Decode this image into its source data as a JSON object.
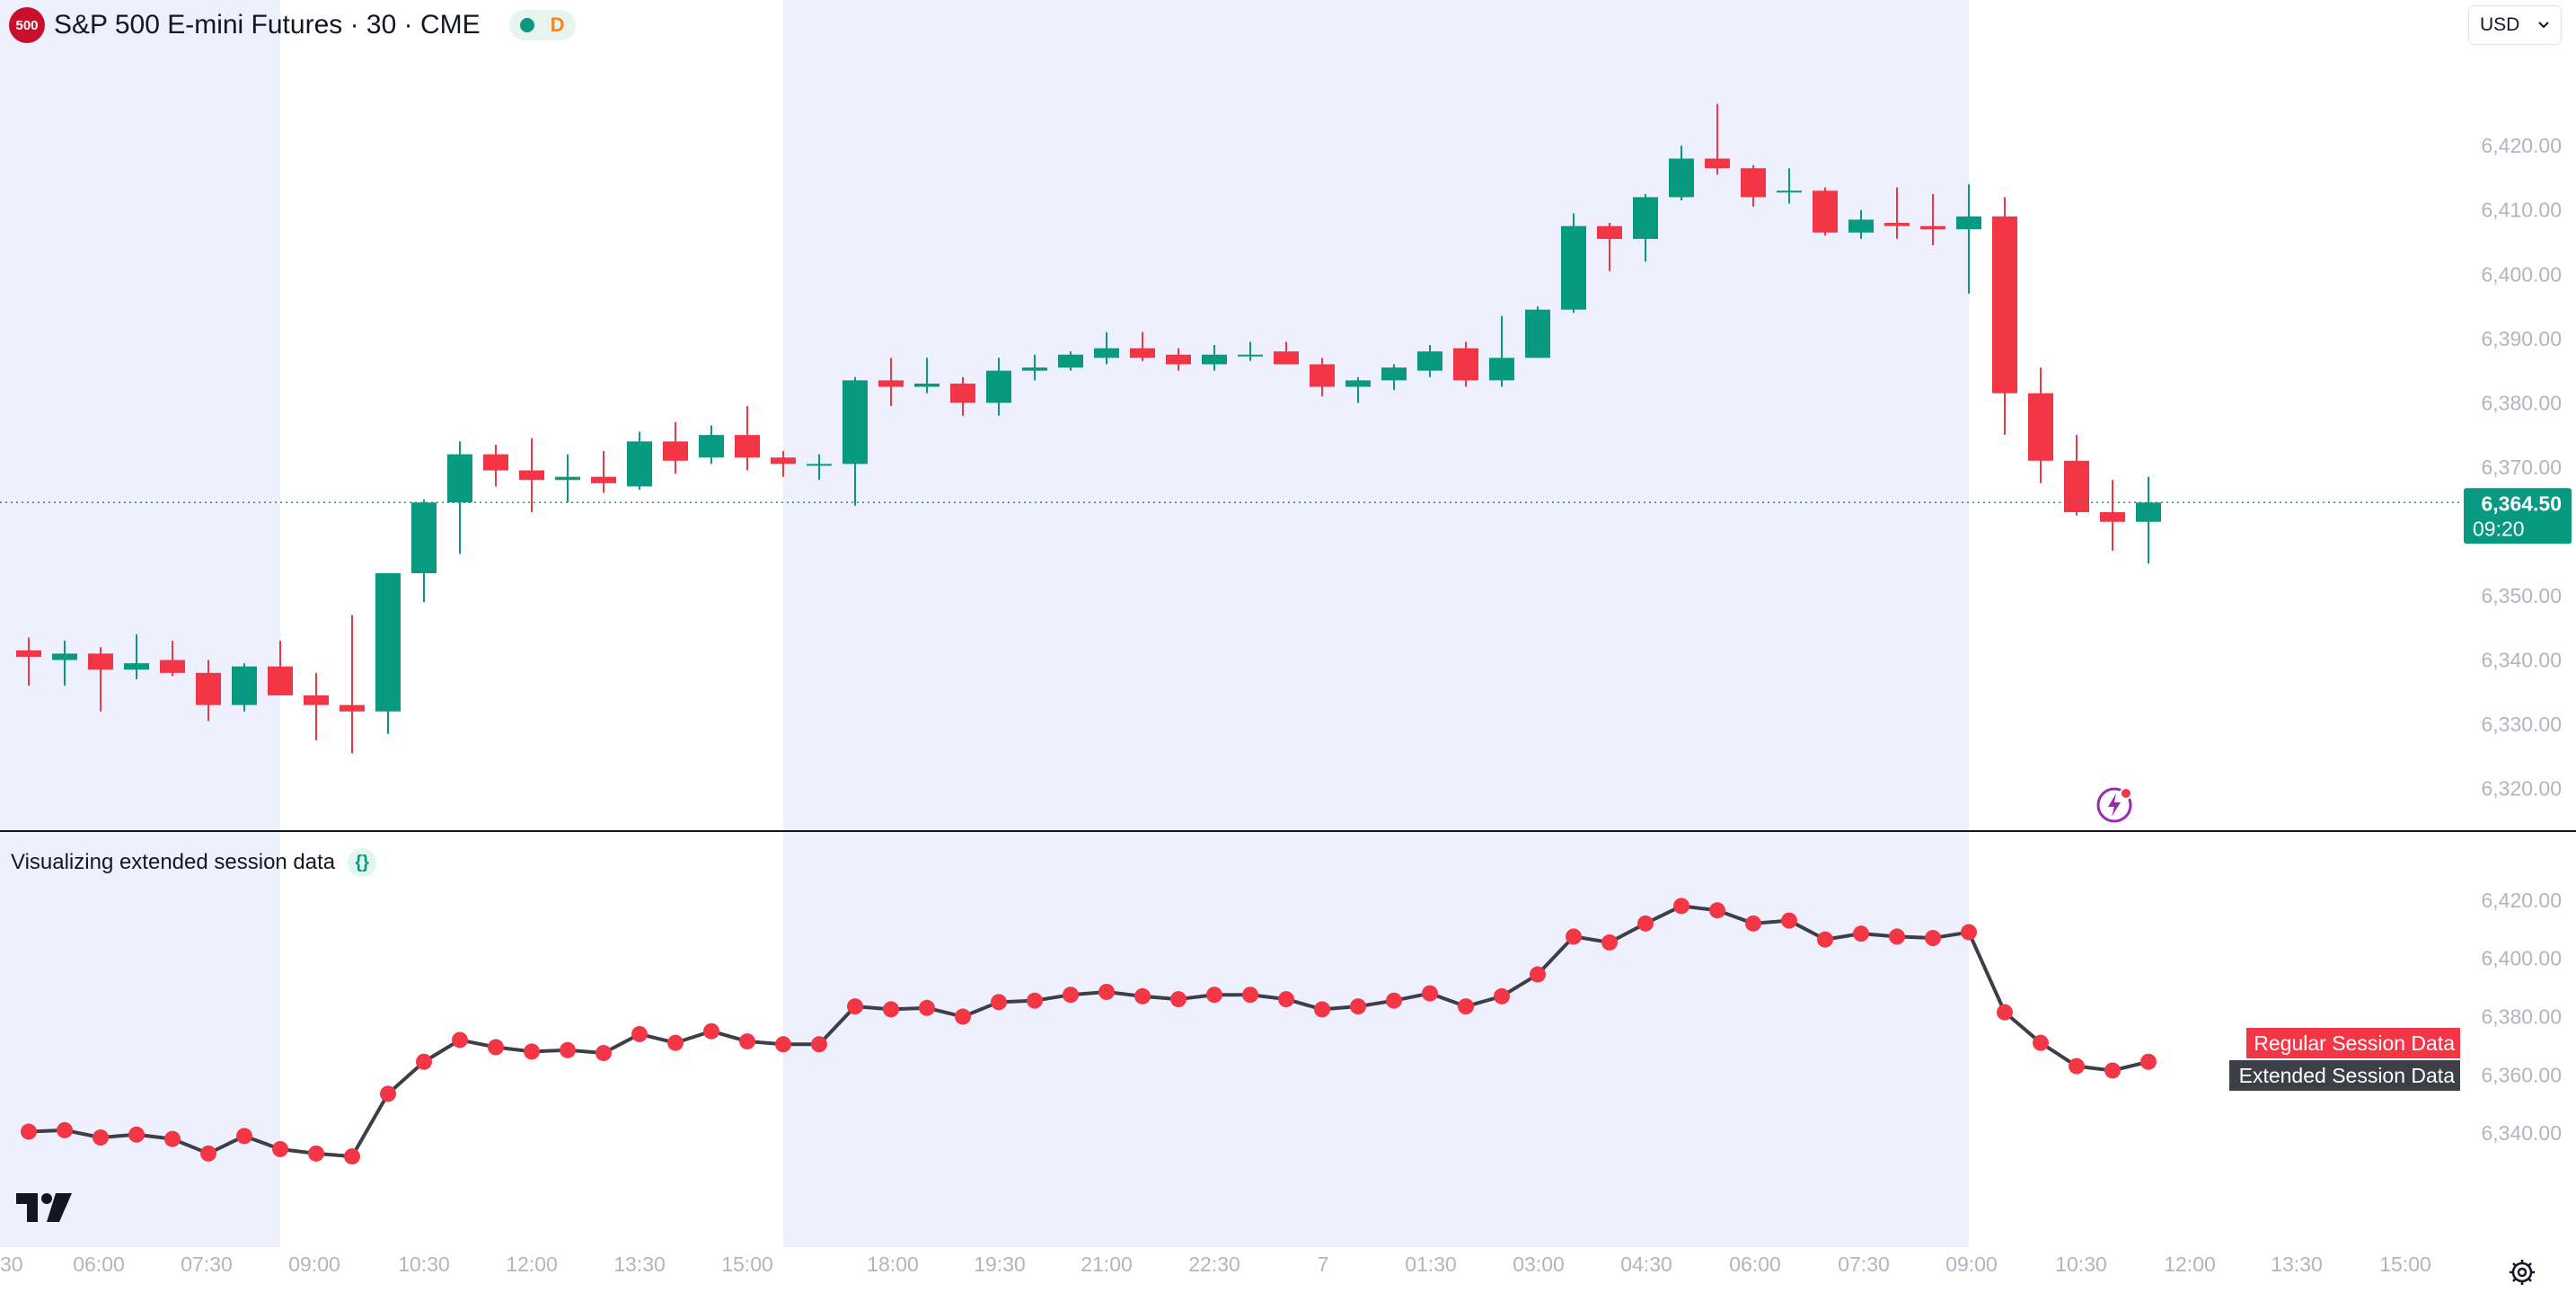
{
  "header": {
    "badge": "500",
    "title": "S&P 500 E-mini Futures · 30 · CME",
    "status_letter": "D",
    "currency": "USD"
  },
  "indicator": {
    "label": "Visualizing extended session data"
  },
  "colors": {
    "up": "#089981",
    "down": "#f23645",
    "line": "#3c3f47",
    "session_shade": "#eef1fd",
    "last_line": "#089981"
  },
  "icons": [
    "tradingview-logo-icon",
    "settings-gear-icon",
    "lightning-alert-icon",
    "chevron-down-icon",
    "curly-braces-icon"
  ],
  "chart_data": [
    {
      "type": "candlestick",
      "title": "S&P 500 E-mini Futures · 30 · CME",
      "y_ticks": [
        "6,320.00",
        "6,330.00",
        "6,340.00",
        "6,350.00",
        "6,360.00",
        "6,370.00",
        "6,380.00",
        "6,390.00",
        "6,400.00",
        "6,410.00",
        "6,420.00"
      ],
      "ylim": [
        6318,
        6434
      ],
      "last_price": "6,364.50",
      "countdown": "09:20",
      "candles": [
        {
          "o": 6341.5,
          "h": 6343.5,
          "l": 6336.0,
          "c": 6340.5
        },
        {
          "o": 6340.0,
          "h": 6343.0,
          "l": 6336.0,
          "c": 6341.0
        },
        {
          "o": 6341.0,
          "h": 6342.0,
          "l": 6332.0,
          "c": 6338.5
        },
        {
          "o": 6338.5,
          "h": 6344.0,
          "l": 6337.0,
          "c": 6339.5
        },
        {
          "o": 6340.0,
          "h": 6343.0,
          "l": 6337.5,
          "c": 6338.0
        },
        {
          "o": 6338.0,
          "h": 6340.0,
          "l": 6330.5,
          "c": 6333.0
        },
        {
          "o": 6333.0,
          "h": 6339.5,
          "l": 6332.0,
          "c": 6339.0
        },
        {
          "o": 6339.0,
          "h": 6343.0,
          "l": 6334.5,
          "c": 6334.5
        },
        {
          "o": 6334.5,
          "h": 6338.0,
          "l": 6327.5,
          "c": 6333.0
        },
        {
          "o": 6333.0,
          "h": 6347.0,
          "l": 6325.5,
          "c": 6332.0
        },
        {
          "o": 6332.0,
          "h": 6353.5,
          "l": 6328.5,
          "c": 6353.5
        },
        {
          "o": 6353.5,
          "h": 6365.0,
          "l": 6349.0,
          "c": 6364.5
        },
        {
          "o": 6364.5,
          "h": 6374.0,
          "l": 6356.5,
          "c": 6372.0
        },
        {
          "o": 6372.0,
          "h": 6373.5,
          "l": 6367.0,
          "c": 6369.5
        },
        {
          "o": 6369.5,
          "h": 6374.5,
          "l": 6363.0,
          "c": 6368.0
        },
        {
          "o": 6368.0,
          "h": 6372.0,
          "l": 6364.5,
          "c": 6368.5
        },
        {
          "o": 6368.5,
          "h": 6372.5,
          "l": 6366.0,
          "c": 6367.5
        },
        {
          "o": 6367.0,
          "h": 6375.5,
          "l": 6366.5,
          "c": 6374.0
        },
        {
          "o": 6374.0,
          "h": 6377.0,
          "l": 6369.0,
          "c": 6371.0
        },
        {
          "o": 6371.5,
          "h": 6376.5,
          "l": 6370.5,
          "c": 6375.0
        },
        {
          "o": 6375.0,
          "h": 6379.5,
          "l": 6369.5,
          "c": 6371.5
        },
        {
          "o": 6371.5,
          "h": 6372.5,
          "l": 6368.5,
          "c": 6370.5
        },
        {
          "o": 6370.5,
          "h": 6372.0,
          "l": 6368.0,
          "c": 6370.5
        },
        {
          "o": 6370.5,
          "h": 6384.0,
          "l": 6364.0,
          "c": 6383.5
        },
        {
          "o": 6383.5,
          "h": 6387.0,
          "l": 6379.5,
          "c": 6382.5
        },
        {
          "o": 6382.5,
          "h": 6387.0,
          "l": 6381.5,
          "c": 6383.0
        },
        {
          "o": 6383.0,
          "h": 6384.0,
          "l": 6378.0,
          "c": 6380.0
        },
        {
          "o": 6380.0,
          "h": 6387.0,
          "l": 6378.0,
          "c": 6385.0
        },
        {
          "o": 6385.0,
          "h": 6387.5,
          "l": 6383.5,
          "c": 6385.5
        },
        {
          "o": 6385.5,
          "h": 6388.0,
          "l": 6385.0,
          "c": 6387.5
        },
        {
          "o": 6387.0,
          "h": 6391.0,
          "l": 6386.0,
          "c": 6388.5
        },
        {
          "o": 6388.5,
          "h": 6391.0,
          "l": 6386.5,
          "c": 6387.0
        },
        {
          "o": 6387.5,
          "h": 6388.5,
          "l": 6385.0,
          "c": 6386.0
        },
        {
          "o": 6386.0,
          "h": 6389.0,
          "l": 6385.0,
          "c": 6387.5
        },
        {
          "o": 6387.5,
          "h": 6389.5,
          "l": 6386.5,
          "c": 6387.5
        },
        {
          "o": 6388.0,
          "h": 6389.5,
          "l": 6386.0,
          "c": 6386.0
        },
        {
          "o": 6386.0,
          "h": 6387.0,
          "l": 6381.0,
          "c": 6382.5
        },
        {
          "o": 6382.5,
          "h": 6384.0,
          "l": 6380.0,
          "c": 6383.5
        },
        {
          "o": 6383.5,
          "h": 6386.0,
          "l": 6382.0,
          "c": 6385.5
        },
        {
          "o": 6385.0,
          "h": 6389.0,
          "l": 6384.0,
          "c": 6388.0
        },
        {
          "o": 6388.5,
          "h": 6389.5,
          "l": 6382.5,
          "c": 6383.5
        },
        {
          "o": 6383.5,
          "h": 6393.5,
          "l": 6382.5,
          "c": 6387.0
        },
        {
          "o": 6387.0,
          "h": 6395.0,
          "l": 6387.0,
          "c": 6394.5
        },
        {
          "o": 6394.5,
          "h": 6409.5,
          "l": 6394.0,
          "c": 6407.5
        },
        {
          "o": 6407.5,
          "h": 6408.0,
          "l": 6400.5,
          "c": 6405.5
        },
        {
          "o": 6405.5,
          "h": 6412.5,
          "l": 6402.0,
          "c": 6412.0
        },
        {
          "o": 6412.0,
          "h": 6420.0,
          "l": 6411.5,
          "c": 6418.0
        },
        {
          "o": 6418.0,
          "h": 6426.5,
          "l": 6415.5,
          "c": 6416.5
        },
        {
          "o": 6416.5,
          "h": 6417.0,
          "l": 6410.5,
          "c": 6412.0
        },
        {
          "o": 6413.0,
          "h": 6416.5,
          "l": 6411.0,
          "c": 6413.0
        },
        {
          "o": 6413.0,
          "h": 6413.5,
          "l": 6406.0,
          "c": 6406.5
        },
        {
          "o": 6406.5,
          "h": 6410.0,
          "l": 6405.5,
          "c": 6408.5
        },
        {
          "o": 6408.0,
          "h": 6413.5,
          "l": 6405.5,
          "c": 6407.5
        },
        {
          "o": 6407.5,
          "h": 6412.5,
          "l": 6404.5,
          "c": 6407.0
        },
        {
          "o": 6407.0,
          "h": 6414.0,
          "l": 6397.0,
          "c": 6409.0
        },
        {
          "o": 6409.0,
          "h": 6412.0,
          "l": 6375.0,
          "c": 6381.5
        },
        {
          "o": 6381.5,
          "h": 6385.5,
          "l": 6367.5,
          "c": 6371.0
        },
        {
          "o": 6371.0,
          "h": 6375.0,
          "l": 6362.5,
          "c": 6363.0
        },
        {
          "o": 6363.0,
          "h": 6368.0,
          "l": 6357.0,
          "c": 6361.5
        },
        {
          "o": 6361.5,
          "h": 6368.5,
          "l": 6355.0,
          "c": 6364.5
        }
      ]
    },
    {
      "type": "line",
      "title": "Visualizing extended session data",
      "y_ticks": [
        "6,340.00",
        "6,360.00",
        "6,380.00",
        "6,400.00",
        "6,420.00"
      ],
      "ylim": [
        6324,
        6432
      ],
      "legend": [
        "Regular Session Data",
        "Extended Session Data"
      ],
      "x_ticks": [
        "30",
        "06:00",
        "07:30",
        "09:00",
        "10:30",
        "12:00",
        "13:30",
        "15:00",
        "18:00",
        "19:30",
        "21:00",
        "22:30",
        "7",
        "01:30",
        "03:00",
        "04:30",
        "06:00",
        "07:30",
        "09:00",
        "10:30",
        "12:00",
        "13:30",
        "15:00"
      ],
      "values": [
        6340.5,
        6341.0,
        6338.5,
        6339.5,
        6338.0,
        6333.0,
        6339.0,
        6334.5,
        6333.0,
        6332.0,
        6353.5,
        6364.5,
        6372.0,
        6369.5,
        6368.0,
        6368.5,
        6367.5,
        6374.0,
        6371.0,
        6375.0,
        6371.5,
        6370.5,
        6370.5,
        6383.5,
        6382.5,
        6383.0,
        6380.0,
        6385.0,
        6385.5,
        6387.5,
        6388.5,
        6387.0,
        6386.0,
        6387.5,
        6387.5,
        6386.0,
        6382.5,
        6383.5,
        6385.5,
        6388.0,
        6383.5,
        6387.0,
        6394.5,
        6407.5,
        6405.5,
        6412.0,
        6418.0,
        6416.5,
        6412.0,
        6413.0,
        6406.5,
        6408.5,
        6407.5,
        6407.0,
        6409.0,
        6381.5,
        6371.0,
        6363.0,
        6361.5,
        6364.5
      ]
    }
  ]
}
